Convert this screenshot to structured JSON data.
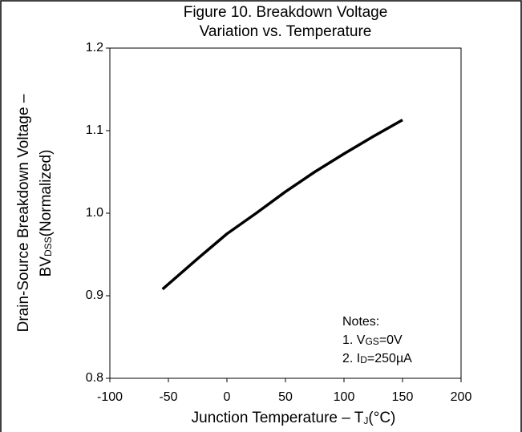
{
  "chart_data": {
    "type": "line",
    "title": [
      "Figure 10. Breakdown Voltage",
      "Variation vs. Temperature"
    ],
    "y_label": {
      "line1": "Drain-Source Breakdown Voltage –",
      "line2": [
        "BV",
        "DSS",
        "(Normalized)"
      ]
    },
    "x_label": [
      "Junction Temperature –  T",
      "J",
      "(°C)"
    ],
    "notes": {
      "heading": "Notes:",
      "items": [
        [
          "1. V",
          "GS",
          "=0V"
        ],
        [
          "2. I",
          "D",
          "=250µA"
        ]
      ]
    },
    "x": [
      -55,
      -25,
      0,
      25,
      50,
      75,
      100,
      125,
      150
    ],
    "series": [
      {
        "name": "BVDSS",
        "color": "#000000",
        "values": [
          0.908,
          0.945,
          0.975,
          1.0,
          1.026,
          1.05,
          1.072,
          1.093,
          1.113
        ]
      }
    ],
    "xlim": [
      -100,
      200
    ],
    "xticks": [
      -100,
      -50,
      0,
      50,
      100,
      150,
      200
    ],
    "ylim": [
      0.8,
      1.2
    ],
    "yticks": [
      0.8,
      0.9,
      {
        "value": 1.0,
        "label": "1.0"
      },
      1.1,
      1.2
    ],
    "grid": false
  }
}
